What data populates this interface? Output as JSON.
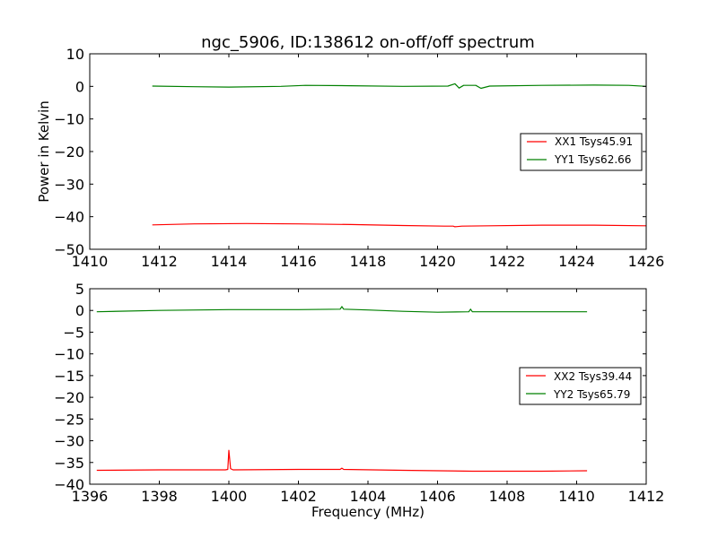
{
  "title": "ngc_5906, ID:138612 on-off/off spectrum",
  "colors": {
    "xx": "#ff0000",
    "yy": "#008000"
  },
  "chart_data": [
    {
      "type": "line",
      "title": "ngc_5906, ID:138612 on-off/off spectrum",
      "xlabel": "",
      "ylabel": "Power in Kelvin",
      "xlim": [
        1410,
        1426
      ],
      "ylim": [
        -50,
        10
      ],
      "xticks": [
        "1410",
        "1412",
        "1414",
        "1416",
        "1418",
        "1420",
        "1422",
        "1424",
        "1426"
      ],
      "yticks": [
        "10",
        "0",
        "−10",
        "−20",
        "−30",
        "−40",
        "−50"
      ],
      "grid": false,
      "legend_position": "center-right",
      "series": [
        {
          "name": "XX1 Tsys45.91",
          "color": "#ff0000",
          "x": [
            1411.8,
            1413,
            1414.5,
            1416,
            1417.5,
            1419,
            1420.2,
            1420.45,
            1420.5,
            1420.7,
            1421.5,
            1423,
            1424.5,
            1426
          ],
          "y": [
            -42.5,
            -42.2,
            -42.1,
            -42.2,
            -42.4,
            -42.7,
            -42.9,
            -42.9,
            -43.1,
            -42.9,
            -42.8,
            -42.6,
            -42.6,
            -42.8
          ]
        },
        {
          "name": "YY1 Tsys62.66",
          "color": "#008000",
          "x": [
            1411.8,
            1413,
            1414,
            1415.5,
            1416.2,
            1417.5,
            1419,
            1420.3,
            1420.5,
            1420.62,
            1420.75,
            1421.1,
            1421.25,
            1421.5,
            1423,
            1424.5,
            1425.5,
            1426
          ],
          "y": [
            0.1,
            -0.1,
            -0.2,
            0.0,
            0.3,
            0.2,
            0.0,
            0.1,
            0.8,
            -0.5,
            0.3,
            0.3,
            -0.6,
            0.1,
            0.3,
            0.4,
            0.3,
            0.0
          ]
        }
      ]
    },
    {
      "type": "line",
      "title": "",
      "xlabel": "Frequency (MHz)",
      "ylabel": "",
      "xlim": [
        1396,
        1412
      ],
      "ylim": [
        -40,
        5
      ],
      "xticks": [
        "1396",
        "1398",
        "1400",
        "1402",
        "1404",
        "1406",
        "1408",
        "1410",
        "1412"
      ],
      "yticks": [
        "5",
        "0",
        "−5",
        "−10",
        "−15",
        "−20",
        "−25",
        "−30",
        "−35",
        "−40"
      ],
      "grid": false,
      "legend_position": "center-right",
      "series": [
        {
          "name": "XX2 Tsys39.44",
          "color": "#ff0000",
          "x": [
            1396.2,
            1398,
            1399.9,
            1399.97,
            1400.0,
            1400.05,
            1400.12,
            1402,
            1403.2,
            1403.25,
            1403.3,
            1405,
            1407,
            1409,
            1410.3
          ],
          "y": [
            -36.8,
            -36.7,
            -36.7,
            -36.6,
            -32.2,
            -36.4,
            -36.7,
            -36.6,
            -36.6,
            -36.3,
            -36.6,
            -36.8,
            -37.0,
            -37.0,
            -36.9
          ],
          "peak": {
            "x": 1400.0,
            "y": -32.2
          }
        },
        {
          "name": "YY2 Tsys65.79",
          "color": "#008000",
          "x": [
            1396.2,
            1398,
            1400,
            1402,
            1403.2,
            1403.25,
            1403.3,
            1404,
            1405,
            1406,
            1406.9,
            1406.95,
            1407,
            1408,
            1409,
            1410.3
          ],
          "y": [
            -0.3,
            0.0,
            0.2,
            0.2,
            0.3,
            0.9,
            0.3,
            0.1,
            -0.2,
            -0.4,
            -0.3,
            0.3,
            -0.3,
            -0.3,
            -0.3,
            -0.3
          ]
        }
      ]
    }
  ]
}
